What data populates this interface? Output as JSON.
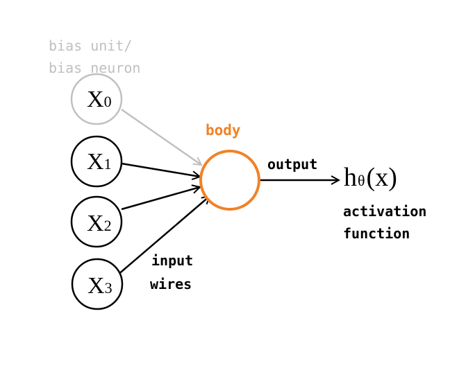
{
  "labels": {
    "bias_line1": "bias unit/",
    "bias_line2": "bias neuron",
    "body": "body",
    "output": "output",
    "activation_line1": "activation",
    "activation_line2": "function",
    "input_line1": "input",
    "input_line2": "wires"
  },
  "nodes": [
    {
      "main": "X",
      "sub": "0"
    },
    {
      "main": "X",
      "sub": "1"
    },
    {
      "main": "X",
      "sub": "2"
    },
    {
      "main": "X",
      "sub": "3"
    }
  ],
  "hypothesis": {
    "h": "h",
    "sub": "θ",
    "arg": "(x)"
  },
  "colors": {
    "bias": "#c0c0c0",
    "body": "#f08228",
    "stroke": "#000000",
    "text": "#000000"
  }
}
